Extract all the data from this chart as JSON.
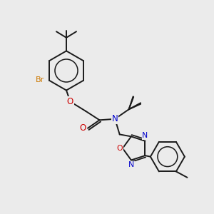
{
  "bg_color": "#ebebeb",
  "bond_color": "#1a1a1a",
  "bond_width": 1.4,
  "atom_colors": {
    "N": "#0000cc",
    "O": "#cc0000",
    "Br": "#cc7700"
  },
  "figsize": [
    3.0,
    3.0
  ],
  "dpi": 100,
  "xlim": [
    0,
    10
  ],
  "ylim": [
    0,
    10
  ]
}
